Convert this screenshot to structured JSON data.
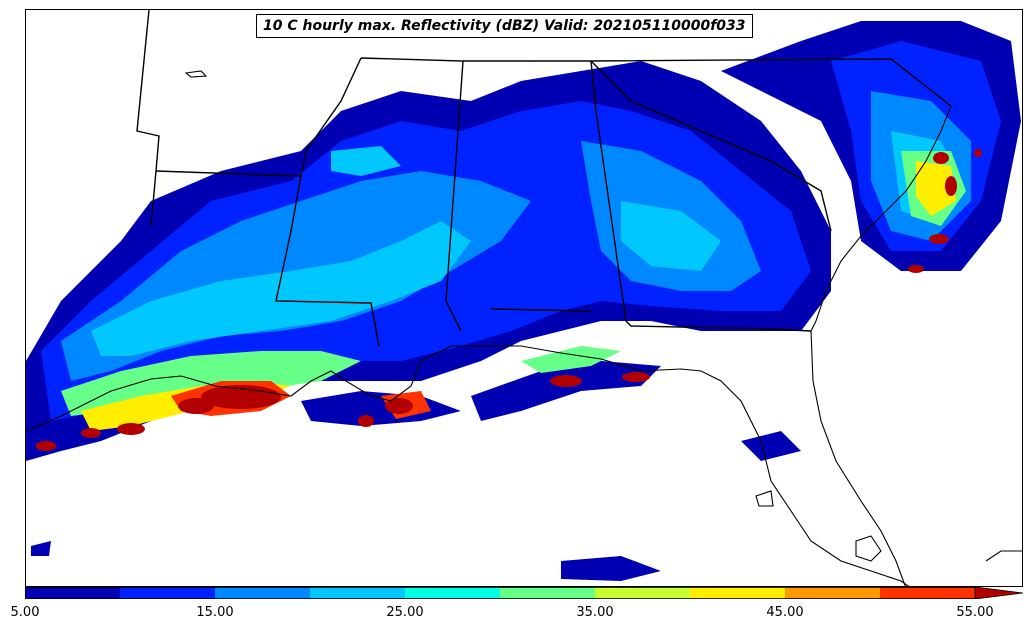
{
  "title": "10 C hourly max. Reflectivity (dBZ) Valid: 202105110000f033",
  "colorbar": {
    "levels": [
      5,
      10,
      15,
      20,
      25,
      30,
      35,
      40,
      45,
      50,
      55
    ],
    "colors": [
      "#0000b2",
      "#0022ff",
      "#0088ff",
      "#00c8ff",
      "#00ffe0",
      "#66ff88",
      "#c8ff33",
      "#ffee00",
      "#ff9900",
      "#ff3300",
      "#b20000"
    ],
    "extend": "max",
    "tick_labels": [
      "5.00",
      "15.00",
      "25.00",
      "35.00",
      "45.00",
      "55.00"
    ]
  },
  "map": {
    "region": "Southeastern United States and northern Gulf of Mexico",
    "boundaries": [
      "coastline",
      "state lines"
    ],
    "background": "#ffffff"
  }
}
